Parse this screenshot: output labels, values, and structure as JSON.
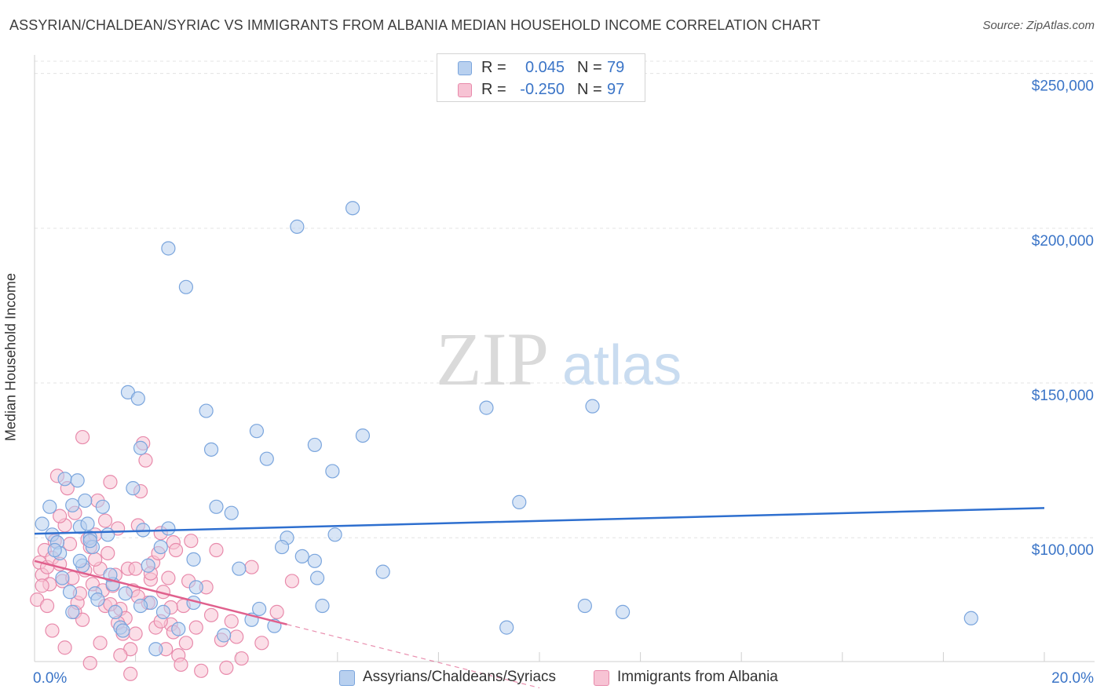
{
  "header": {
    "title": "ASSYRIAN/CHALDEAN/SYRIAC VS IMMIGRANTS FROM ALBANIA MEDIAN HOUSEHOLD INCOME CORRELATION CHART",
    "source": "Source: ZipAtlas.com"
  },
  "watermark": {
    "zip": "ZIP",
    "atlas": "atlas"
  },
  "legend_top": {
    "rows": [
      {
        "r_label": "R =",
        "r_value": "0.045",
        "n_label": "N =",
        "n_value": "79"
      },
      {
        "r_label": "R =",
        "r_value": "-0.250",
        "n_label": "N =",
        "n_value": "97"
      }
    ]
  },
  "colors": {
    "blue_fill": "#b8d0ef",
    "blue_stroke": "#7aa5dd",
    "blue_line": "#2e6fcf",
    "pink_fill": "#f7c3d4",
    "pink_stroke": "#e88aab",
    "pink_line": "#e0608d",
    "tick_label": "#3a74c7",
    "grid": "#e3e3e3"
  },
  "chart_data": {
    "type": "scatter",
    "title": "ASSYRIAN/CHALDEAN/SYRIAC VS IMMIGRANTS FROM ALBANIA MEDIAN HOUSEHOLD INCOME CORRELATION CHART",
    "xlabel": "",
    "ylabel": "Median Household Income",
    "xlim": [
      0,
      20
    ],
    "ylim": [
      60000,
      256000
    ],
    "x_tick_labels": [
      "0.0%",
      "20.0%"
    ],
    "y_ticks": [
      100000,
      150000,
      200000,
      250000
    ],
    "y_tick_labels": [
      "$100,000",
      "$150,000",
      "$200,000",
      "$250,000"
    ],
    "grid": true,
    "legend_position": "top-center",
    "series": [
      {
        "name": "Assyrians/Chaldeans/Syriacs",
        "color": "#7aa5dd",
        "r": 0.045,
        "n": 79,
        "trend": {
          "x0": 0,
          "y0": 101300,
          "x1": 20,
          "y1": 109600
        },
        "points": [
          [
            0.15,
            104500
          ],
          [
            0.3,
            110000
          ],
          [
            0.35,
            101000
          ],
          [
            0.45,
            98500
          ],
          [
            0.5,
            95000
          ],
          [
            0.6,
            119000
          ],
          [
            0.75,
            110500
          ],
          [
            0.85,
            118500
          ],
          [
            0.9,
            103500
          ],
          [
            0.95,
            91000
          ],
          [
            1.0,
            112000
          ],
          [
            1.05,
            104500
          ],
          [
            1.1,
            100000
          ],
          [
            1.15,
            97000
          ],
          [
            0.7,
            82500
          ],
          [
            0.75,
            76000
          ],
          [
            1.2,
            82000
          ],
          [
            1.25,
            80000
          ],
          [
            1.35,
            110000
          ],
          [
            1.45,
            101000
          ],
          [
            1.55,
            85000
          ],
          [
            1.6,
            76000
          ],
          [
            1.7,
            71000
          ],
          [
            1.75,
            70000
          ],
          [
            1.8,
            82000
          ],
          [
            1.85,
            147000
          ],
          [
            1.95,
            116000
          ],
          [
            2.05,
            145000
          ],
          [
            2.1,
            129000
          ],
          [
            2.15,
            102500
          ],
          [
            2.25,
            91000
          ],
          [
            2.3,
            79000
          ],
          [
            2.4,
            64000
          ],
          [
            2.5,
            97000
          ],
          [
            2.55,
            76000
          ],
          [
            2.65,
            103000
          ],
          [
            2.65,
            193500
          ],
          [
            2.85,
            70500
          ],
          [
            3.0,
            181000
          ],
          [
            3.15,
            79000
          ],
          [
            3.15,
            93000
          ],
          [
            3.4,
            141000
          ],
          [
            3.5,
            128500
          ],
          [
            3.6,
            110000
          ],
          [
            3.75,
            68500
          ],
          [
            3.9,
            108000
          ],
          [
            4.05,
            90000
          ],
          [
            4.3,
            73500
          ],
          [
            4.4,
            134500
          ],
          [
            4.45,
            77000
          ],
          [
            4.6,
            125500
          ],
          [
            4.75,
            71500
          ],
          [
            5.0,
            100000
          ],
          [
            5.2,
            200500
          ],
          [
            5.3,
            94000
          ],
          [
            5.55,
            92500
          ],
          [
            5.6,
            87000
          ],
          [
            5.7,
            78000
          ],
          [
            5.9,
            121500
          ],
          [
            5.95,
            101000
          ],
          [
            6.3,
            206500
          ],
          [
            6.5,
            133000
          ],
          [
            6.9,
            89000
          ],
          [
            5.55,
            130000
          ],
          [
            8.95,
            142000
          ],
          [
            9.35,
            71000
          ],
          [
            9.6,
            111500
          ],
          [
            10.9,
            78000
          ],
          [
            11.05,
            142500
          ],
          [
            11.65,
            76000
          ],
          [
            18.55,
            74000
          ],
          [
            1.1,
            99000
          ],
          [
            0.4,
            96000
          ],
          [
            2.1,
            78000
          ],
          [
            3.2,
            84000
          ],
          [
            0.9,
            92500
          ],
          [
            1.5,
            88000
          ],
          [
            0.55,
            87000
          ],
          [
            4.9,
            97000
          ]
        ]
      },
      {
        "name": "Immigrants from Albania",
        "color": "#e88aab",
        "r": -0.25,
        "n": 97,
        "trend": {
          "x0": 0,
          "y0": 92500,
          "x1": 5.0,
          "y1": 72000,
          "dash_x1": 10.0,
          "dash_y1": 51500
        },
        "points": [
          [
            0.05,
            80000
          ],
          [
            0.1,
            92000
          ],
          [
            0.15,
            88000
          ],
          [
            0.2,
            96000
          ],
          [
            0.25,
            90500
          ],
          [
            0.3,
            85000
          ],
          [
            0.35,
            93500
          ],
          [
            0.4,
            99000
          ],
          [
            0.45,
            120000
          ],
          [
            0.5,
            91500
          ],
          [
            0.55,
            86000
          ],
          [
            0.6,
            104000
          ],
          [
            0.65,
            116000
          ],
          [
            0.7,
            98000
          ],
          [
            0.75,
            87000
          ],
          [
            0.8,
            76000
          ],
          [
            0.85,
            79000
          ],
          [
            0.9,
            82000
          ],
          [
            0.95,
            73500
          ],
          [
            1.0,
            89500
          ],
          [
            1.05,
            99500
          ],
          [
            1.1,
            97000
          ],
          [
            1.15,
            85000
          ],
          [
            1.2,
            101000
          ],
          [
            1.25,
            112000
          ],
          [
            1.3,
            90000
          ],
          [
            1.35,
            83000
          ],
          [
            1.4,
            78000
          ],
          [
            1.45,
            95000
          ],
          [
            1.5,
            118000
          ],
          [
            1.55,
            84500
          ],
          [
            1.6,
            88000
          ],
          [
            1.65,
            103000
          ],
          [
            1.7,
            77000
          ],
          [
            1.75,
            69000
          ],
          [
            1.8,
            74000
          ],
          [
            1.85,
            90000
          ],
          [
            1.9,
            64000
          ],
          [
            1.95,
            83000
          ],
          [
            2.0,
            69000
          ],
          [
            2.05,
            104000
          ],
          [
            2.1,
            115000
          ],
          [
            2.15,
            130500
          ],
          [
            2.2,
            125000
          ],
          [
            2.25,
            79000
          ],
          [
            2.3,
            86500
          ],
          [
            2.35,
            92000
          ],
          [
            2.4,
            71000
          ],
          [
            2.45,
            95000
          ],
          [
            2.5,
            101500
          ],
          [
            2.55,
            82500
          ],
          [
            2.6,
            64000
          ],
          [
            2.65,
            87000
          ],
          [
            2.7,
            72000
          ],
          [
            2.75,
            98500
          ],
          [
            2.8,
            96000
          ],
          [
            2.85,
            62000
          ],
          [
            2.9,
            59000
          ],
          [
            2.95,
            78000
          ],
          [
            3.0,
            66000
          ],
          [
            3.05,
            86000
          ],
          [
            3.1,
            99000
          ],
          [
            3.2,
            71000
          ],
          [
            3.3,
            57000
          ],
          [
            3.4,
            84000
          ],
          [
            3.5,
            75000
          ],
          [
            3.6,
            96000
          ],
          [
            3.7,
            67000
          ],
          [
            3.8,
            58000
          ],
          [
            3.9,
            73000
          ],
          [
            4.0,
            68000
          ],
          [
            4.1,
            61000
          ],
          [
            4.3,
            90500
          ],
          [
            4.5,
            66000
          ],
          [
            4.8,
            76000
          ],
          [
            5.1,
            86000
          ],
          [
            0.35,
            70000
          ],
          [
            0.6,
            64500
          ],
          [
            0.8,
            108000
          ],
          [
            1.1,
            59500
          ],
          [
            1.2,
            93000
          ],
          [
            1.3,
            66000
          ],
          [
            1.5,
            78500
          ],
          [
            1.7,
            62000
          ],
          [
            1.9,
            56000
          ],
          [
            2.05,
            81000
          ],
          [
            2.3,
            88500
          ],
          [
            2.5,
            73000
          ],
          [
            2.7,
            77500
          ],
          [
            0.25,
            78000
          ],
          [
            0.5,
            107000
          ],
          [
            0.95,
            132500
          ],
          [
            1.4,
            105500
          ],
          [
            1.65,
            72500
          ],
          [
            2.0,
            90000
          ],
          [
            2.75,
            69500
          ],
          [
            0.15,
            84500
          ]
        ]
      }
    ]
  },
  "legend_bottom": {
    "items": [
      {
        "label": "Assyrians/Chaldeans/Syriacs"
      },
      {
        "label": "Immigrants from Albania"
      }
    ]
  }
}
